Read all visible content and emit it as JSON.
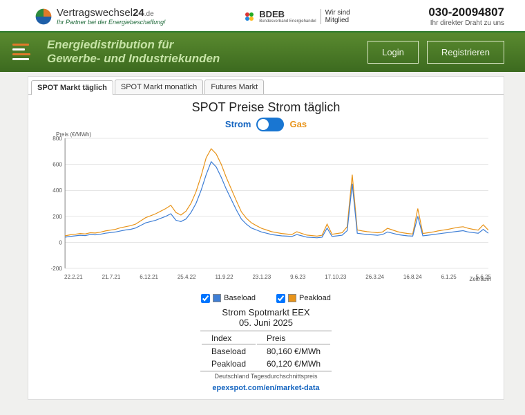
{
  "brand": {
    "name_main": "Vertragswechsel",
    "name_24": "24",
    "name_suffix": ".de",
    "tagline": "Ihr Partner bei der Energiebeschaffung!"
  },
  "badge": {
    "name": "BDEB",
    "sub": "Bundesverband Energiehandel",
    "mitglied_l1": "Wir sind",
    "mitglied_l2": "Mitglied"
  },
  "contact": {
    "phone": "030-20094807",
    "sub": "Ihr direkter Draht zu uns"
  },
  "headline_l1": "Energiedistribution für",
  "headline_l2": "Gewerbe- und Industriekunden",
  "buttons": {
    "login": "Login",
    "register": "Registrieren"
  },
  "tabs": {
    "t1": "SPOT Markt täglich",
    "t2": "SPOT Markt monatlich",
    "t3": "Futures Markt"
  },
  "chart": {
    "title": "SPOT Preise Strom täglich",
    "toggle_strom": "Strom",
    "toggle_gas": "Gas",
    "y_axis": "Preis (€/MWh)",
    "x_axis": "Zeitraum",
    "y_ticks": [
      "-200",
      "0",
      "200",
      "400",
      "600",
      "800"
    ],
    "x_ticks": [
      "22.2.21",
      "21.7.21",
      "6.12.21",
      "25.4.22",
      "11.9.22",
      "23.1.23",
      "9.6.23",
      "17.10.23",
      "26.3.24",
      "16.8.24",
      "6.1.25",
      "5.6.25"
    ],
    "color_baseload": "#3f7fd6",
    "color_peakload": "#e8941a",
    "grid_color": "#cccccc",
    "background": "#ffffff",
    "ylim": [
      -200,
      800
    ],
    "series_baseload": [
      40,
      45,
      50,
      55,
      52,
      60,
      58,
      62,
      70,
      75,
      80,
      88,
      95,
      100,
      110,
      130,
      150,
      160,
      170,
      185,
      200,
      220,
      170,
      160,
      180,
      230,
      300,
      400,
      520,
      620,
      580,
      500,
      410,
      330,
      250,
      180,
      140,
      110,
      95,
      80,
      70,
      60,
      55,
      50,
      48,
      45,
      60,
      50,
      40,
      38,
      35,
      40,
      110,
      45,
      50,
      55,
      90,
      450,
      70,
      65,
      60,
      58,
      55,
      60,
      80,
      70,
      60,
      55,
      50,
      48,
      200,
      50,
      55,
      60,
      65,
      70,
      75,
      80,
      85,
      90,
      80,
      75,
      70,
      100,
      70
    ],
    "series_peakload": [
      50,
      58,
      62,
      68,
      65,
      74,
      72,
      78,
      88,
      94,
      100,
      112,
      120,
      128,
      140,
      165,
      190,
      205,
      220,
      240,
      260,
      285,
      230,
      210,
      240,
      300,
      390,
      510,
      650,
      720,
      680,
      600,
      500,
      410,
      320,
      235,
      185,
      150,
      128,
      108,
      95,
      82,
      75,
      68,
      64,
      60,
      82,
      68,
      56,
      52,
      48,
      55,
      140,
      62,
      68,
      74,
      120,
      520,
      95,
      88,
      82,
      78,
      74,
      80,
      108,
      95,
      82,
      74,
      68,
      64,
      260,
      68,
      74,
      80,
      88,
      94,
      100,
      108,
      116,
      120,
      108,
      100,
      94,
      135,
      94
    ]
  },
  "legend": {
    "baseload": "Baseload",
    "peakload": "Peakload"
  },
  "summary": {
    "title": "Strom Spotmarkt EEX",
    "date": "05. Juni 2025",
    "col_index": "Index",
    "col_price": "Preis",
    "row1_label": "Baseload",
    "row1_value": "80,160 €/MWh",
    "row2_label": "Peakload",
    "row2_value": "60,120 €/MWh",
    "footnote": "Deutschland Tagesdurchschnittspreis",
    "link": "epexspot.com/en/market-data"
  }
}
